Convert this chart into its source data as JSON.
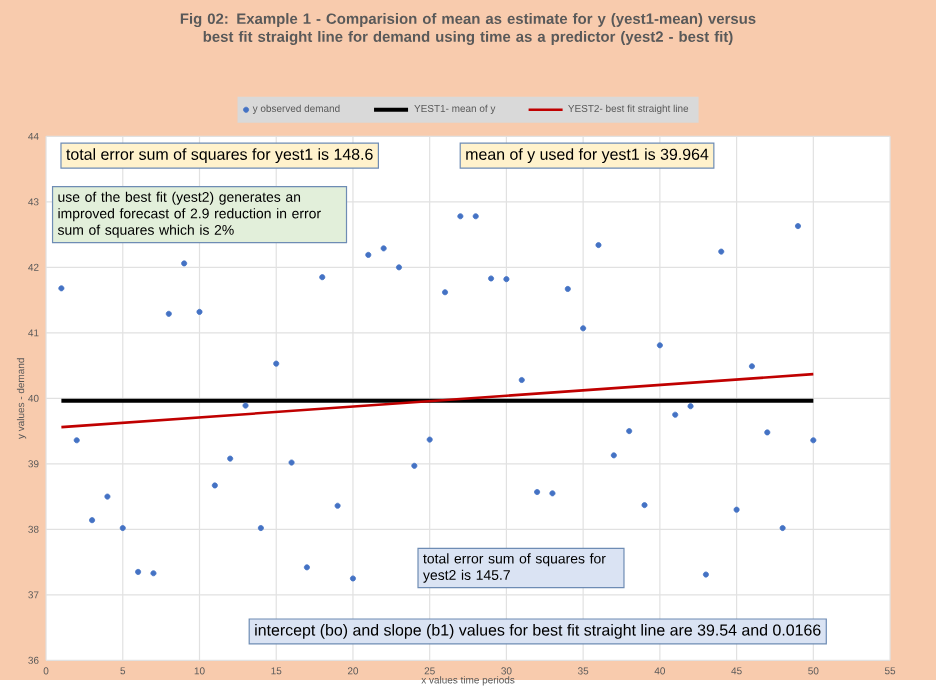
{
  "chart_data": {
    "type": "scatter",
    "title": "Fig 02:  Example 1 -  Comparision of mean as estimate for y (yest1-mean) versus best fit straight line for demand using time as a predictor (yest2 - best fit)",
    "xlabel": "x values time periods",
    "ylabel": "y values - demand",
    "xlim": [
      0,
      55
    ],
    "xticks": [
      0,
      5,
      10,
      15,
      20,
      25,
      30,
      35,
      40,
      45,
      50,
      55
    ],
    "ylim": [
      36,
      44
    ],
    "yticks": [
      36,
      37,
      38,
      39,
      40,
      41,
      42,
      43,
      44
    ],
    "grid": true,
    "legend": "top",
    "series": [
      {
        "name": "y observed demand",
        "marker": "circle",
        "color": "#4472c4",
        "x": [
          1,
          2,
          3,
          4,
          5,
          6,
          7,
          8,
          9,
          10,
          11,
          12,
          13,
          14,
          15,
          16,
          17,
          18,
          19,
          20,
          21,
          22,
          23,
          24,
          25,
          26,
          27,
          28,
          29,
          30,
          31,
          32,
          33,
          34,
          35,
          36,
          37,
          38,
          39,
          40,
          41,
          42,
          43,
          44,
          45,
          46,
          47,
          48,
          49,
          50
        ],
        "values": [
          41.68,
          39.36,
          38.14,
          38.5,
          38.02,
          37.35,
          37.33,
          41.29,
          42.06,
          41.32,
          38.67,
          39.08,
          39.89,
          38.02,
          40.53,
          39.02,
          37.42,
          41.85,
          38.36,
          37.25,
          42.19,
          42.29,
          42.0,
          38.97,
          39.37,
          41.62,
          42.78,
          42.78,
          41.83,
          41.82,
          40.28,
          38.57,
          38.55,
          41.67,
          41.07,
          42.34,
          39.13,
          39.5,
          38.37,
          40.81,
          39.75,
          39.88,
          37.31,
          42.24,
          38.3,
          40.49,
          39.48,
          38.02,
          42.63,
          39.36
        ]
      },
      {
        "name": "YEST1- mean of y",
        "type": "line",
        "marker": "none",
        "color": "#000000",
        "x": [
          1,
          50
        ],
        "values": [
          39.964,
          39.964
        ]
      },
      {
        "name": "YEST2- best fit straight line",
        "type": "line",
        "marker": "none",
        "color": "#c00000",
        "x": [
          1,
          50
        ],
        "values": [
          39.56,
          40.37
        ]
      }
    ],
    "annotations": [
      "total error sum of squares for yest1 is 148.6",
      "mean of y used for yest1 is 39.964",
      "use of the best fit (yest2) generates an improved forecast of 2.9 reduction in error sum of squares which is 2%",
      "total error sum of squares for yest2 is 145.7",
      "intercept (bo) and slope (b1) values for best fit straight line are 39.54 and  0.0166"
    ]
  }
}
